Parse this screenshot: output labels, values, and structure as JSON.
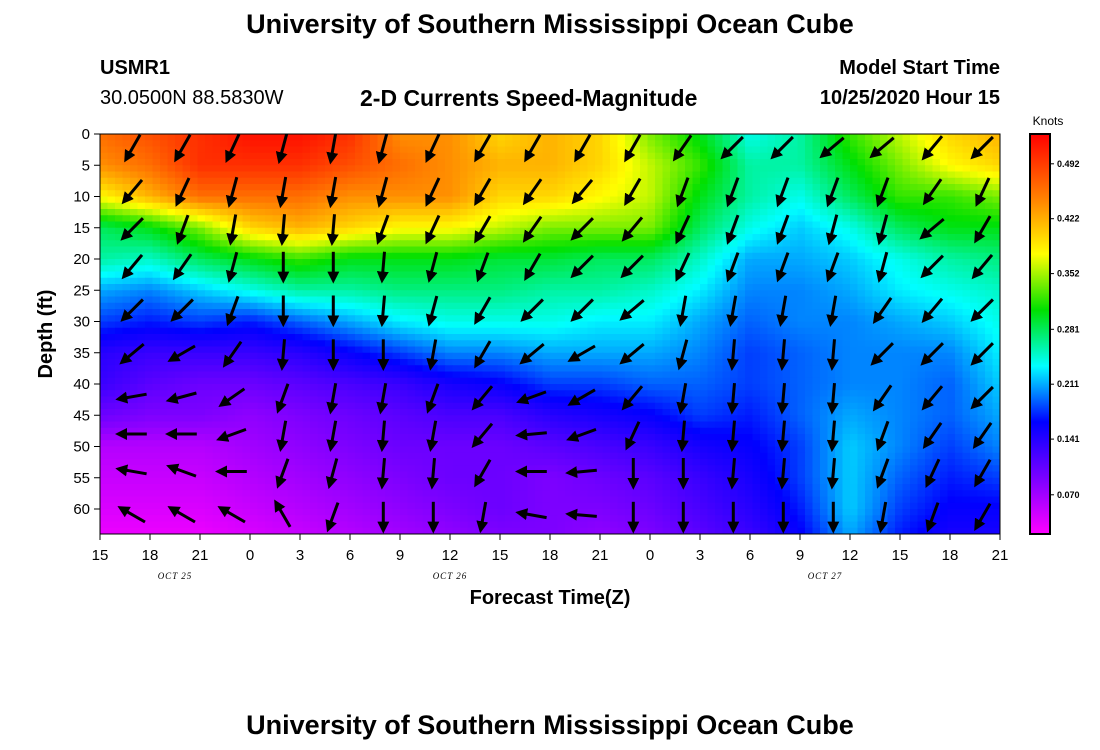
{
  "header": {
    "title_top": "University of Southern Mississippi Ocean Cube",
    "title_bottom": "University of Southern Mississippi Ocean Cube",
    "station": "USMR1",
    "coords": "30.0500N 88.5830W",
    "plot_title": "2-D Currents Speed-Magnitude",
    "model_label": "Model Start Time",
    "model_time": "10/25/2020 Hour 15"
  },
  "chart_data": {
    "type": "heatmap",
    "title": "2-D Currents Speed-Magnitude",
    "xlabel": "Forecast Time(Z)",
    "ylabel": "Depth (ft)",
    "x_start": "10/25/2020 15Z",
    "xlim_hours": [
      0,
      54
    ],
    "x_tick_labels": [
      "15",
      "18",
      "21",
      "0",
      "3",
      "6",
      "9",
      "12",
      "15",
      "18",
      "21",
      "0",
      "3",
      "6",
      "9",
      "12",
      "15",
      "18",
      "21"
    ],
    "date_labels": [
      {
        "label": "OCT  25",
        "at_hour": 4.5
      },
      {
        "label": "OCT  26",
        "at_hour": 21
      },
      {
        "label": "OCT  27",
        "at_hour": 43.5
      }
    ],
    "ylim": [
      0,
      64
    ],
    "y_ticks": [
      0,
      5,
      10,
      15,
      20,
      25,
      30,
      35,
      40,
      45,
      50,
      55,
      60
    ],
    "colorbar": {
      "unit": "Knots",
      "range": [
        0.02,
        0.53
      ],
      "tick_labels": [
        "0.492",
        "0.422",
        "0.352",
        "0.281",
        "0.211",
        "0.141",
        "0.070"
      ]
    },
    "speed_grid": {
      "hours": [
        0,
        3,
        6,
        9,
        12,
        15,
        18,
        21,
        24,
        27,
        30,
        33,
        36,
        39,
        42,
        45,
        48,
        51,
        54
      ],
      "depths": [
        0,
        5,
        10,
        15,
        20,
        25,
        30,
        35,
        40,
        45,
        50,
        55,
        60,
        64
      ],
      "values": [
        [
          0.46,
          0.48,
          0.5,
          0.52,
          0.52,
          0.5,
          0.44,
          0.44,
          0.4,
          0.42,
          0.4,
          0.34,
          0.3,
          0.24,
          0.26,
          0.32,
          0.36,
          0.4,
          0.42
        ],
        [
          0.44,
          0.46,
          0.5,
          0.5,
          0.5,
          0.48,
          0.46,
          0.44,
          0.42,
          0.42,
          0.4,
          0.36,
          0.32,
          0.26,
          0.26,
          0.3,
          0.34,
          0.38,
          0.4
        ],
        [
          0.38,
          0.42,
          0.46,
          0.46,
          0.46,
          0.44,
          0.44,
          0.44,
          0.4,
          0.4,
          0.38,
          0.36,
          0.3,
          0.26,
          0.24,
          0.28,
          0.32,
          0.32,
          0.34
        ],
        [
          0.28,
          0.3,
          0.34,
          0.4,
          0.42,
          0.4,
          0.38,
          0.38,
          0.36,
          0.34,
          0.34,
          0.34,
          0.28,
          0.24,
          0.22,
          0.24,
          0.28,
          0.3,
          0.3
        ],
        [
          0.26,
          0.25,
          0.28,
          0.3,
          0.32,
          0.3,
          0.3,
          0.3,
          0.29,
          0.29,
          0.28,
          0.28,
          0.25,
          0.21,
          0.21,
          0.22,
          0.24,
          0.26,
          0.27
        ],
        [
          0.21,
          0.2,
          0.22,
          0.24,
          0.26,
          0.26,
          0.27,
          0.27,
          0.27,
          0.26,
          0.26,
          0.25,
          0.23,
          0.2,
          0.2,
          0.21,
          0.23,
          0.24,
          0.25
        ],
        [
          0.18,
          0.17,
          0.18,
          0.17,
          0.19,
          0.21,
          0.23,
          0.24,
          0.24,
          0.24,
          0.23,
          0.23,
          0.21,
          0.19,
          0.2,
          0.2,
          0.21,
          0.22,
          0.24
        ],
        [
          0.14,
          0.13,
          0.13,
          0.13,
          0.14,
          0.16,
          0.18,
          0.2,
          0.2,
          0.21,
          0.21,
          0.21,
          0.2,
          0.18,
          0.19,
          0.2,
          0.2,
          0.2,
          0.23
        ],
        [
          0.13,
          0.11,
          0.1,
          0.1,
          0.11,
          0.12,
          0.13,
          0.15,
          0.16,
          0.18,
          0.18,
          0.19,
          0.19,
          0.18,
          0.19,
          0.2,
          0.2,
          0.19,
          0.22
        ],
        [
          0.1,
          0.09,
          0.09,
          0.08,
          0.09,
          0.1,
          0.11,
          0.12,
          0.12,
          0.14,
          0.15,
          0.16,
          0.18,
          0.17,
          0.19,
          0.21,
          0.2,
          0.19,
          0.21
        ],
        [
          0.06,
          0.06,
          0.06,
          0.07,
          0.08,
          0.09,
          0.1,
          0.1,
          0.1,
          0.11,
          0.12,
          0.13,
          0.15,
          0.16,
          0.18,
          0.22,
          0.2,
          0.18,
          0.2
        ],
        [
          0.05,
          0.05,
          0.05,
          0.06,
          0.07,
          0.08,
          0.09,
          0.1,
          0.1,
          0.09,
          0.1,
          0.11,
          0.13,
          0.15,
          0.18,
          0.22,
          0.19,
          0.17,
          0.18
        ],
        [
          0.04,
          0.04,
          0.04,
          0.05,
          0.06,
          0.07,
          0.08,
          0.09,
          0.1,
          0.09,
          0.09,
          0.1,
          0.12,
          0.14,
          0.17,
          0.22,
          0.18,
          0.16,
          0.16
        ],
        [
          0.03,
          0.03,
          0.03,
          0.04,
          0.05,
          0.06,
          0.07,
          0.08,
          0.09,
          0.09,
          0.08,
          0.09,
          0.11,
          0.13,
          0.16,
          0.21,
          0.17,
          0.15,
          0.15
        ]
      ]
    },
    "vectors": {
      "hours": [
        2,
        5,
        8,
        11,
        14,
        17,
        20,
        23,
        26,
        29,
        32,
        35,
        38,
        41,
        44,
        47,
        50,
        53
      ],
      "depths": [
        2,
        9,
        15,
        21,
        28,
        35,
        42,
        48,
        54,
        61
      ],
      "direction_deg": [
        [
          210,
          210,
          205,
          195,
          190,
          195,
          205,
          210,
          210,
          210,
          210,
          215,
          225,
          225,
          230,
          230,
          220,
          225
        ],
        [
          220,
          205,
          195,
          190,
          190,
          195,
          205,
          210,
          215,
          220,
          210,
          200,
          200,
          200,
          200,
          200,
          215,
          205
        ],
        [
          225,
          200,
          190,
          185,
          185,
          200,
          205,
          210,
          215,
          225,
          220,
          205,
          200,
          200,
          195,
          195,
          230,
          210
        ],
        [
          220,
          215,
          195,
          180,
          180,
          185,
          195,
          200,
          210,
          225,
          225,
          205,
          200,
          200,
          200,
          195,
          225,
          220
        ],
        [
          225,
          225,
          200,
          180,
          180,
          185,
          195,
          210,
          225,
          225,
          230,
          190,
          190,
          190,
          190,
          215,
          220,
          225
        ],
        [
          230,
          240,
          215,
          185,
          180,
          180,
          190,
          210,
          230,
          240,
          230,
          195,
          185,
          185,
          185,
          225,
          225,
          225
        ],
        [
          260,
          255,
          235,
          200,
          190,
          190,
          200,
          220,
          250,
          240,
          220,
          190,
          185,
          185,
          185,
          215,
          220,
          225
        ],
        [
          270,
          270,
          250,
          190,
          190,
          185,
          190,
          220,
          265,
          250,
          205,
          185,
          185,
          185,
          185,
          200,
          215,
          215
        ],
        [
          280,
          290,
          270,
          200,
          195,
          185,
          185,
          210,
          270,
          265,
          180,
          180,
          185,
          185,
          185,
          200,
          205,
          210
        ],
        [
          300,
          300,
          300,
          330,
          200,
          180,
          180,
          190,
          280,
          275,
          180,
          180,
          180,
          180,
          180,
          190,
          200,
          210
        ]
      ]
    }
  }
}
